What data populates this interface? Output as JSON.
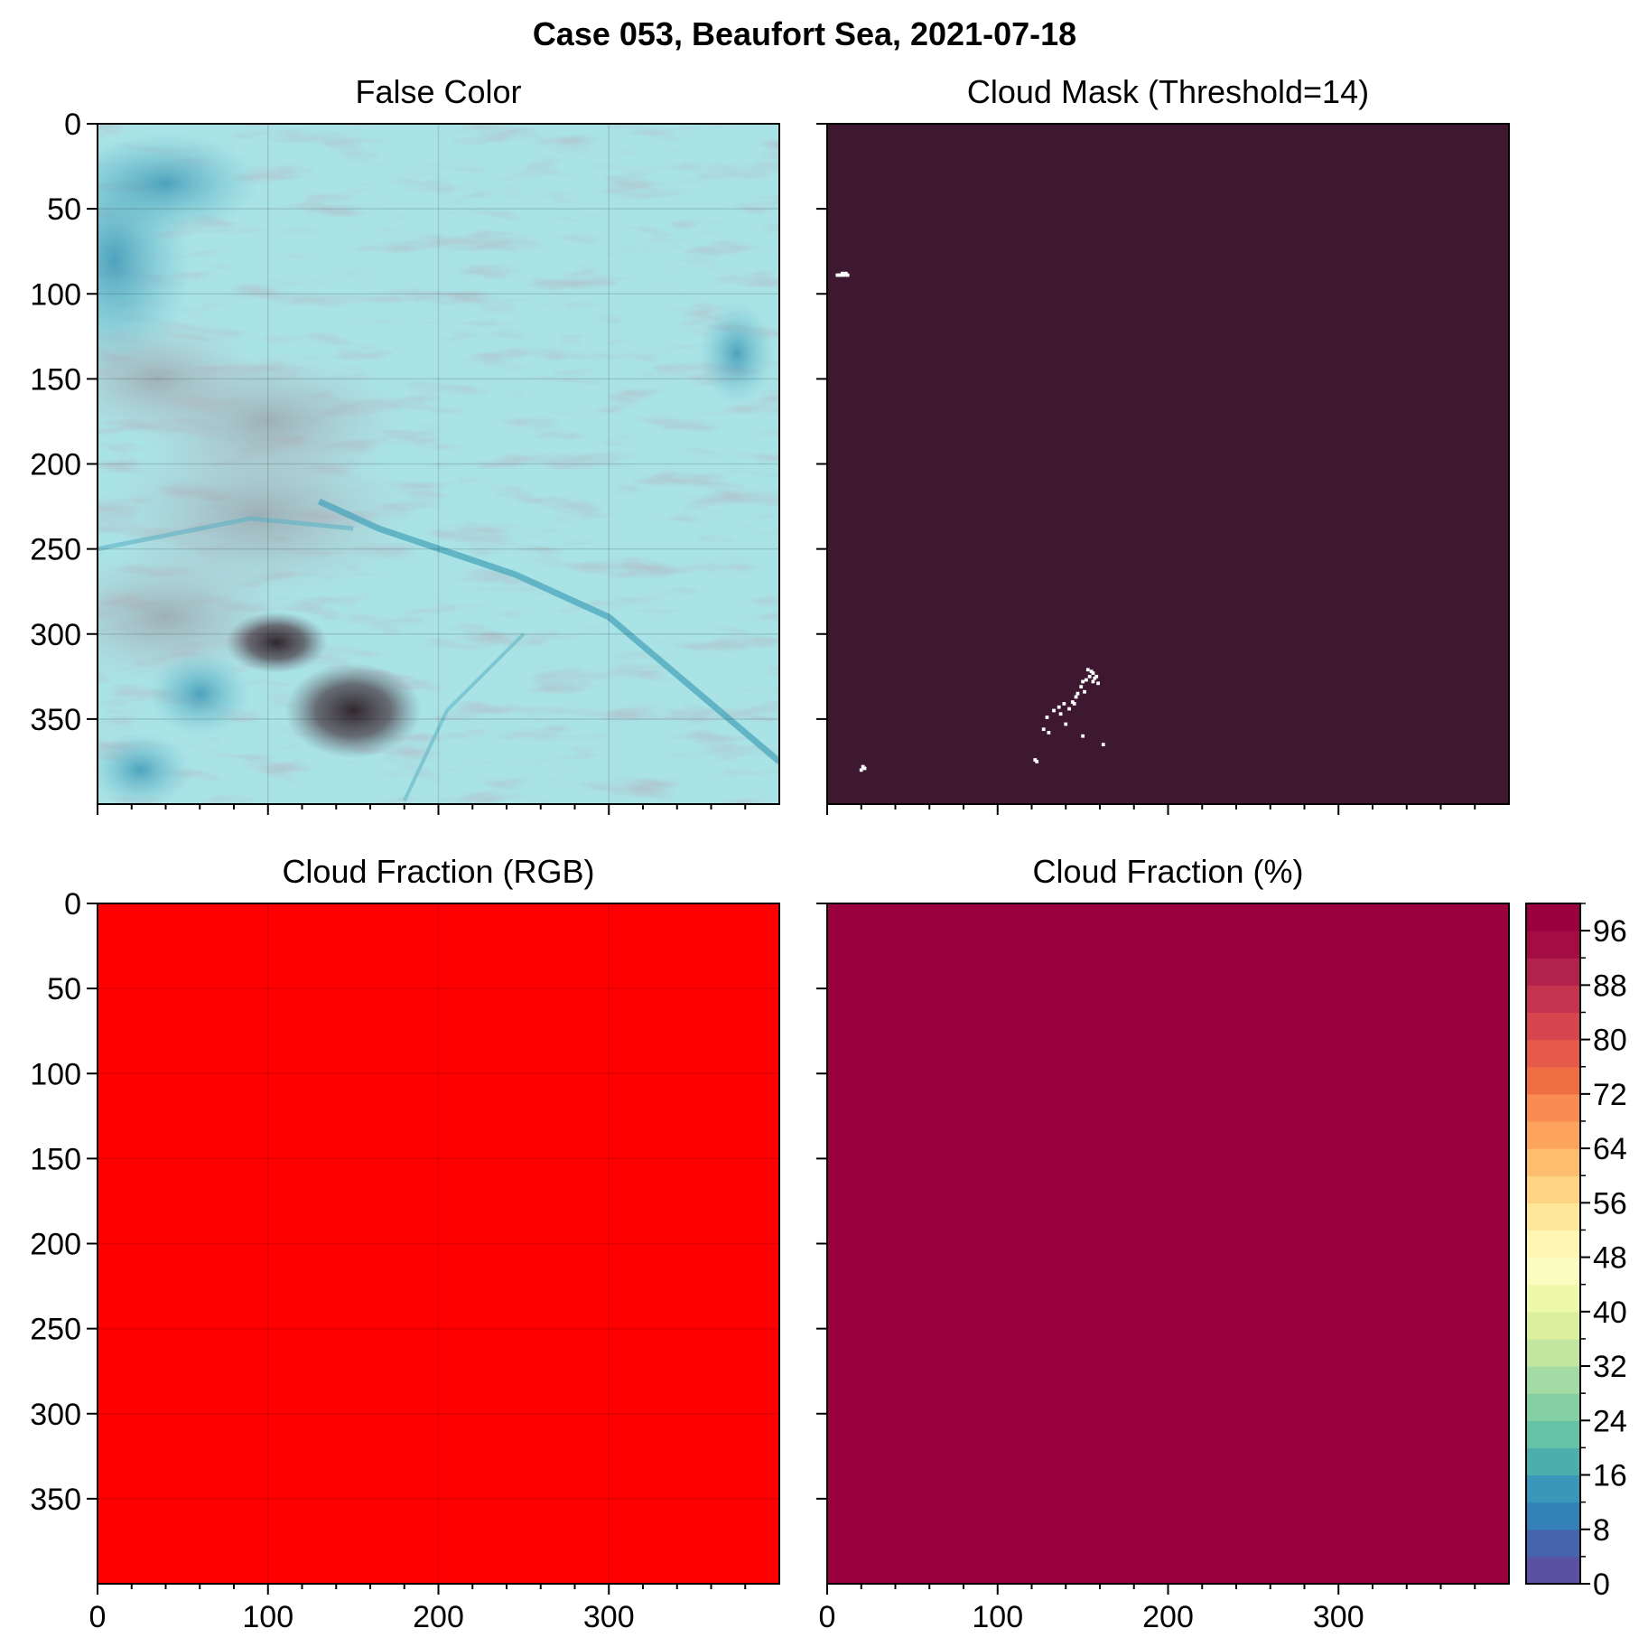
{
  "figure": {
    "suptitle": "Case 053, Beaufort Sea, 2021-07-18"
  },
  "colors": {
    "mask_background": "#3d1830",
    "mask_cloud": "#ffffff",
    "rgb_fraction": "#ff0000",
    "fraction_fill": "#9b003f",
    "false_color_base": "#a9e3e6"
  },
  "chart_data": [
    {
      "type": "heatmap",
      "panel": "false-color",
      "title": "False Color",
      "xlim": [
        0,
        400
      ],
      "ylim": [
        400,
        0
      ],
      "x_ticks": [
        0,
        100,
        200,
        300
      ],
      "show_x_labels": false,
      "y_ticks": [
        0,
        50,
        100,
        150,
        200,
        250,
        300,
        350
      ],
      "show_y_labels": true,
      "y_tick_labels": [
        "0",
        "50",
        "100",
        "150",
        "200",
        "250",
        "300",
        "350"
      ],
      "grid": true,
      "image": "false-color satellite composite (cyan sea ice with dark cloud/open-water patches)"
    },
    {
      "type": "heatmap",
      "panel": "cloud-mask",
      "title": "Cloud Mask (Threshold=14)",
      "xlim": [
        0,
        400
      ],
      "ylim": [
        400,
        0
      ],
      "x_ticks": [
        0,
        100,
        200,
        300
      ],
      "show_x_labels": false,
      "y_ticks": [
        0,
        50,
        100,
        150,
        200,
        250,
        300,
        350
      ],
      "show_y_labels": false,
      "grid": false,
      "mask_pixels": [
        [
          5,
          88
        ],
        [
          6,
          88
        ],
        [
          7,
          88
        ],
        [
          8,
          87
        ],
        [
          9,
          88
        ],
        [
          10,
          87
        ],
        [
          11,
          88
        ],
        [
          152,
          320
        ],
        [
          154,
          321
        ],
        [
          155,
          322
        ],
        [
          153,
          324
        ],
        [
          156,
          325
        ],
        [
          157,
          324
        ],
        [
          155,
          327
        ],
        [
          158,
          328
        ],
        [
          151,
          326
        ],
        [
          149,
          327
        ],
        [
          148,
          330
        ],
        [
          150,
          333
        ],
        [
          146,
          334
        ],
        [
          145,
          336
        ],
        [
          143,
          339
        ],
        [
          144,
          340
        ],
        [
          138,
          340
        ],
        [
          135,
          342
        ],
        [
          141,
          343
        ],
        [
          132,
          344
        ],
        [
          136,
          346
        ],
        [
          128,
          348
        ],
        [
          139,
          352
        ],
        [
          126,
          355
        ],
        [
          129,
          357
        ],
        [
          149,
          359
        ],
        [
          161,
          364
        ],
        [
          121,
          373
        ],
        [
          122,
          374
        ],
        [
          20,
          377
        ],
        [
          21,
          378
        ],
        [
          19,
          379
        ]
      ]
    },
    {
      "type": "heatmap",
      "panel": "cloud-fraction-rgb",
      "title": "Cloud Fraction (RGB)",
      "xlim": [
        0,
        400
      ],
      "ylim": [
        400,
        0
      ],
      "x_ticks": [
        0,
        100,
        200,
        300
      ],
      "show_x_labels": true,
      "x_tick_labels": [
        "0",
        "100",
        "200",
        "300"
      ],
      "y_ticks": [
        0,
        50,
        100,
        150,
        200,
        250,
        300,
        350
      ],
      "show_y_labels": true,
      "y_tick_labels": [
        "0",
        "50",
        "100",
        "150",
        "200",
        "250",
        "300",
        "350"
      ],
      "grid": true,
      "uniform_color": "#ff0000"
    },
    {
      "type": "heatmap",
      "panel": "cloud-fraction-percent",
      "title": "Cloud Fraction (%)",
      "xlim": [
        0,
        400
      ],
      "ylim": [
        400,
        0
      ],
      "x_ticks": [
        0,
        100,
        200,
        300
      ],
      "show_x_labels": true,
      "x_tick_labels": [
        "0",
        "100",
        "200",
        "300"
      ],
      "y_ticks": [
        0,
        50,
        100,
        150,
        200,
        250,
        300,
        350
      ],
      "show_y_labels": false,
      "grid": false,
      "uniform_value": 100,
      "colorbar": {
        "range": [
          0,
          100
        ],
        "levels": 25,
        "tick_values": [
          0,
          8,
          16,
          24,
          32,
          40,
          48,
          56,
          64,
          72,
          80,
          88,
          96
        ],
        "tick_labels": [
          "0",
          "8",
          "16",
          "24",
          "32",
          "40",
          "48",
          "56",
          "64",
          "72",
          "80",
          "88",
          "96"
        ],
        "colormap": "Spectral_r",
        "colors": [
          "#5b51a3",
          "#4664ae",
          "#3480b9",
          "#3b97b9",
          "#4daeae",
          "#66c2a5",
          "#85cfa5",
          "#a4dba4",
          "#c2e6a0",
          "#dbf09e",
          "#eef8a9",
          "#fbfcbf",
          "#fff6b4",
          "#fee79b",
          "#fed483",
          "#fdbd6e",
          "#fca45d",
          "#f88c51",
          "#f16d43",
          "#e55a49",
          "#d7464e",
          "#c4344e",
          "#b2224b",
          "#a40d44",
          "#9b003f"
        ]
      }
    }
  ]
}
